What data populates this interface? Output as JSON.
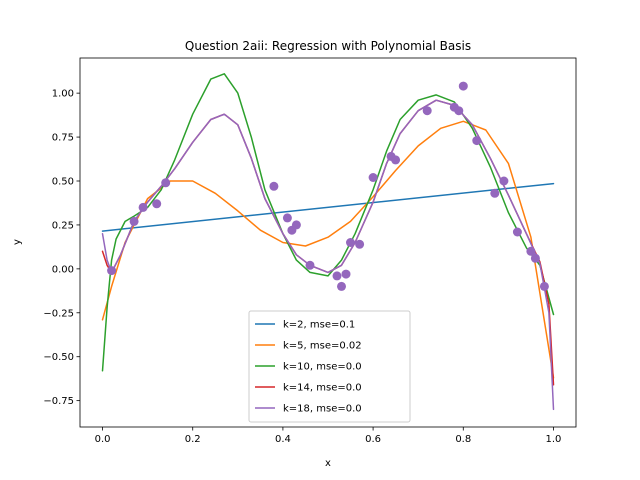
{
  "chart_data": {
    "type": "line",
    "title": "Question 2aii: Regression with Polynomial Basis",
    "xlabel": "x",
    "ylabel": "y",
    "xlim": [
      -0.05,
      1.05
    ],
    "ylim": [
      -0.9,
      1.2
    ],
    "xticks": [
      0.0,
      0.2,
      0.4,
      0.6,
      0.8,
      1.0
    ],
    "xtick_labels": [
      "0.0",
      "0.2",
      "0.4",
      "0.6",
      "0.8",
      "1.0"
    ],
    "yticks": [
      -0.75,
      -0.5,
      -0.25,
      0.0,
      0.25,
      0.5,
      0.75,
      1.0
    ],
    "ytick_labels": [
      "−0.75",
      "−0.50",
      "−0.25",
      "0.00",
      "0.25",
      "0.50",
      "0.75",
      "1.00"
    ],
    "grid": false,
    "legend_position": "bottom-center",
    "series": [
      {
        "name": "k=2, mse=0.1",
        "color": "#1f77b4",
        "x": [
          0.0,
          1.0
        ],
        "y": [
          0.215,
          0.485
        ]
      },
      {
        "name": "k=5, mse=0.02",
        "color": "#ff7f0e",
        "x": [
          0.0,
          0.02,
          0.05,
          0.1,
          0.15,
          0.2,
          0.25,
          0.3,
          0.35,
          0.4,
          0.45,
          0.5,
          0.55,
          0.6,
          0.65,
          0.7,
          0.75,
          0.8,
          0.85,
          0.9,
          0.95,
          1.0
        ],
        "y": [
          -0.29,
          -0.1,
          0.15,
          0.4,
          0.5,
          0.5,
          0.43,
          0.33,
          0.22,
          0.15,
          0.13,
          0.18,
          0.27,
          0.41,
          0.56,
          0.7,
          0.8,
          0.84,
          0.79,
          0.6,
          0.18,
          -0.62
        ]
      },
      {
        "name": "k=10, mse=0.0",
        "color": "#2ca02c",
        "x": [
          0.0,
          0.01,
          0.02,
          0.03,
          0.05,
          0.07,
          0.1,
          0.13,
          0.16,
          0.2,
          0.24,
          0.27,
          0.3,
          0.33,
          0.36,
          0.4,
          0.43,
          0.46,
          0.5,
          0.53,
          0.56,
          0.6,
          0.63,
          0.66,
          0.7,
          0.74,
          0.78,
          0.82,
          0.86,
          0.9,
          0.94,
          0.97,
          1.0
        ],
        "y": [
          -0.58,
          -0.22,
          0.05,
          0.17,
          0.27,
          0.3,
          0.35,
          0.45,
          0.62,
          0.88,
          1.08,
          1.11,
          1.0,
          0.75,
          0.45,
          0.2,
          0.05,
          -0.02,
          -0.04,
          0.05,
          0.2,
          0.45,
          0.67,
          0.85,
          0.96,
          0.99,
          0.95,
          0.8,
          0.58,
          0.32,
          0.12,
          0.02,
          -0.26
        ]
      },
      {
        "name": "k=14, mse=0.0",
        "color": "#d62728",
        "x": [
          0.0,
          0.01,
          0.02,
          0.04,
          0.07,
          0.1,
          0.13,
          0.16,
          0.2,
          0.24,
          0.27,
          0.3,
          0.33,
          0.36,
          0.4,
          0.43,
          0.46,
          0.5,
          0.53,
          0.56,
          0.6,
          0.63,
          0.66,
          0.7,
          0.74,
          0.78,
          0.82,
          0.86,
          0.9,
          0.94,
          0.97,
          0.99,
          1.0
        ],
        "y": [
          0.1,
          0.02,
          -0.02,
          0.08,
          0.27,
          0.38,
          0.47,
          0.57,
          0.72,
          0.85,
          0.88,
          0.82,
          0.63,
          0.4,
          0.2,
          0.08,
          0.02,
          -0.02,
          0.02,
          0.15,
          0.38,
          0.6,
          0.77,
          0.9,
          0.96,
          0.93,
          0.82,
          0.63,
          0.42,
          0.2,
          0.04,
          -0.2,
          -0.66
        ]
      },
      {
        "name": "k=18, mse=0.0",
        "color": "#9467bd",
        "x": [
          0.0,
          0.01,
          0.02,
          0.04,
          0.07,
          0.1,
          0.13,
          0.16,
          0.2,
          0.24,
          0.27,
          0.3,
          0.33,
          0.36,
          0.4,
          0.43,
          0.46,
          0.5,
          0.53,
          0.56,
          0.6,
          0.63,
          0.66,
          0.7,
          0.74,
          0.78,
          0.82,
          0.86,
          0.9,
          0.94,
          0.97,
          0.99,
          1.0
        ],
        "y": [
          0.2,
          0.05,
          -0.02,
          0.08,
          0.27,
          0.38,
          0.47,
          0.57,
          0.72,
          0.85,
          0.88,
          0.82,
          0.63,
          0.4,
          0.2,
          0.08,
          0.02,
          -0.02,
          0.02,
          0.15,
          0.38,
          0.6,
          0.77,
          0.9,
          0.96,
          0.93,
          0.82,
          0.63,
          0.42,
          0.2,
          0.03,
          -0.25,
          -0.8
        ]
      }
    ],
    "scatter": {
      "color": "#9467bd",
      "x": [
        0.02,
        0.07,
        0.09,
        0.12,
        0.14,
        0.38,
        0.41,
        0.42,
        0.43,
        0.46,
        0.52,
        0.53,
        0.54,
        0.55,
        0.57,
        0.6,
        0.64,
        0.65,
        0.72,
        0.78,
        0.79,
        0.8,
        0.83,
        0.87,
        0.89,
        0.92,
        0.95,
        0.96,
        0.98
      ],
      "y": [
        -0.01,
        0.27,
        0.35,
        0.37,
        0.49,
        0.47,
        0.29,
        0.22,
        0.25,
        0.02,
        -0.04,
        -0.1,
        -0.03,
        0.15,
        0.14,
        0.52,
        0.64,
        0.62,
        0.9,
        0.92,
        0.9,
        1.04,
        0.73,
        0.43,
        0.5,
        0.21,
        0.1,
        0.06,
        -0.1
      ]
    }
  }
}
